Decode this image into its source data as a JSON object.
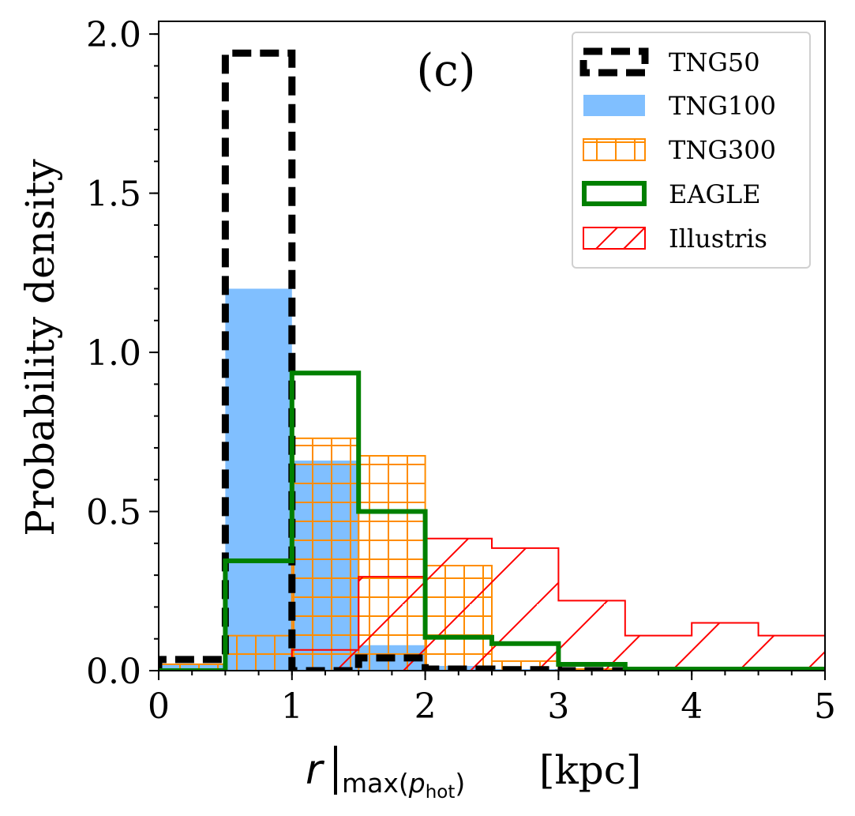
{
  "chart_data": {
    "type": "histogram",
    "panel_label": "(c)",
    "xlabel": {
      "var": "r",
      "sub": "max(",
      "sub_var": "p",
      "sub_var_sub": "hot",
      "sub_close": ")",
      "unit": "[kpc]"
    },
    "ylabel": "Probability density",
    "xlim": [
      0,
      5
    ],
    "ylim": [
      0,
      2.04
    ],
    "x_ticks": [
      0,
      1,
      2,
      3,
      4,
      5
    ],
    "x_tick_labels": [
      "0",
      "1",
      "2",
      "3",
      "4",
      "5"
    ],
    "x_minor_step": 0.25,
    "y_ticks": [
      0,
      0.5,
      1.0,
      1.5,
      2.0
    ],
    "y_tick_labels": [
      "0.0",
      "0.5",
      "1.0",
      "1.5",
      "2.0"
    ],
    "y_minor_step": 0.1,
    "legend": {
      "position": "top-right",
      "entries": [
        "TNG50",
        "TNG100",
        "TNG300",
        "EAGLE",
        "Illustris"
      ]
    },
    "colors": {
      "TNG50": "#000000",
      "TNG100": "#80bfff",
      "TNG300": "#ff8c00",
      "EAGLE": "#008000",
      "Illustris": "#ff0000"
    },
    "series": [
      {
        "name": "TNG50",
        "style": "step-dashed",
        "edges": [
          0,
          0.5,
          1.0,
          1.5,
          2.0,
          2.5,
          3.0,
          3.5,
          4.0,
          4.5,
          5.0
        ],
        "values": [
          0.035,
          1.94,
          0.0,
          0.04,
          0.005,
          0.003,
          0.0,
          0.0,
          0.0,
          0.0
        ]
      },
      {
        "name": "TNG100",
        "style": "filled",
        "edges": [
          0,
          0.5,
          1.0,
          1.5,
          2.0,
          2.5,
          3.0,
          3.5,
          4.0,
          4.5,
          5.0
        ],
        "values": [
          0.02,
          1.2,
          0.66,
          0.08,
          0.015,
          0.005,
          0.0,
          0.0,
          0.0,
          0.0
        ]
      },
      {
        "name": "TNG300",
        "style": "grid-hatch",
        "edges": [
          0,
          0.5,
          1.0,
          1.5,
          2.0,
          2.5,
          3.0,
          3.5,
          4.0,
          4.5,
          5.0
        ],
        "values": [
          0.02,
          0.11,
          0.73,
          0.675,
          0.33,
          0.03,
          0.005,
          0.0,
          0.0,
          0.0
        ]
      },
      {
        "name": "EAGLE",
        "style": "step-thick",
        "edges": [
          0,
          0.5,
          1.0,
          1.5,
          2.0,
          2.5,
          3.0,
          3.5,
          4.0,
          4.5,
          5.0
        ],
        "values": [
          0.0,
          0.345,
          0.935,
          0.5,
          0.105,
          0.085,
          0.02,
          0.005,
          0.005,
          0.005
        ]
      },
      {
        "name": "Illustris",
        "style": "diagonal-hatch",
        "edges": [
          0,
          0.5,
          1.0,
          1.5,
          2.0,
          2.5,
          3.0,
          3.5,
          4.0,
          4.5,
          5.0
        ],
        "values": [
          0.0,
          0.0,
          0.065,
          0.295,
          0.415,
          0.385,
          0.22,
          0.11,
          0.15,
          0.11
        ]
      }
    ]
  }
}
